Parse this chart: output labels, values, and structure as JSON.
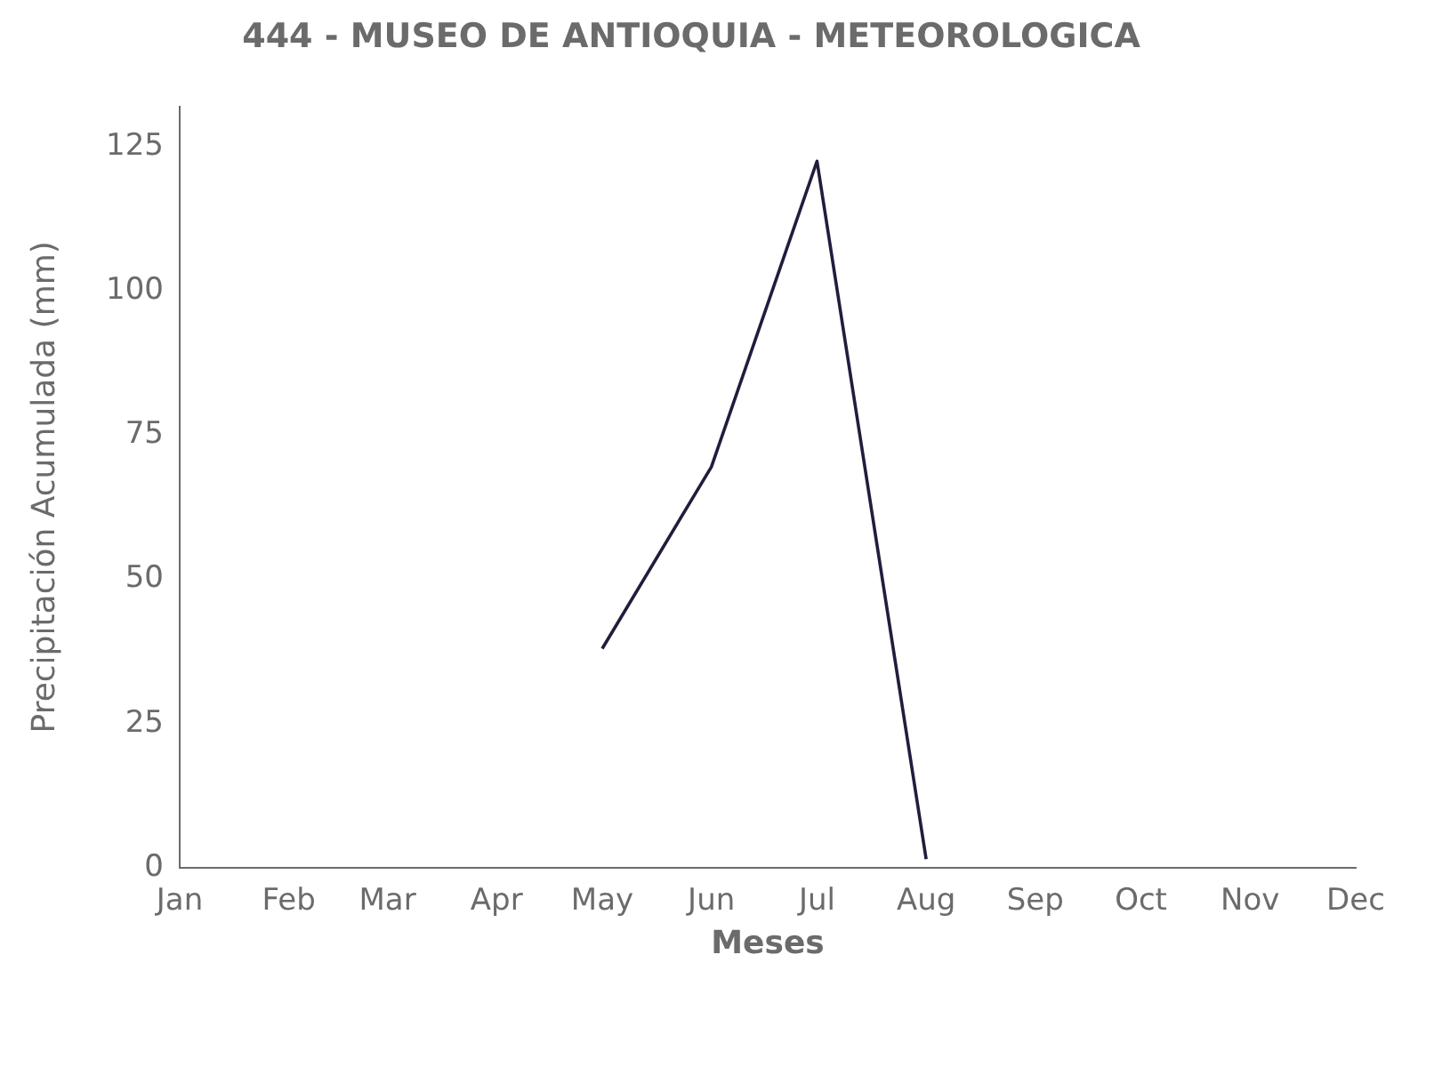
{
  "chart_data": {
    "type": "line",
    "title": "444 - MUSEO DE ANTIOQUIA - METEOROLOGICA",
    "xlabel": "Meses",
    "ylabel": "Precipitación Acumulada (mm)",
    "x": [
      "--05-01",
      "--06-01",
      "--07-01",
      "--08-01"
    ],
    "series": [
      {
        "color": "#211d3d",
        "values": [
          38,
          69.5,
          122.5,
          1.5
        ]
      }
    ],
    "xlim": [
      "--01-01",
      "--12-01"
    ],
    "xticks": [
      {
        "value": "--01-01",
        "label": "Jan"
      },
      {
        "value": "--02-01",
        "label": "Feb"
      },
      {
        "value": "--03-01",
        "label": "Mar"
      },
      {
        "value": "--04-01",
        "label": "Apr"
      },
      {
        "value": "--05-01",
        "label": "May"
      },
      {
        "value": "--06-01",
        "label": "Jun"
      },
      {
        "value": "--07-01",
        "label": "Jul"
      },
      {
        "value": "--08-01",
        "label": "Aug"
      },
      {
        "value": "--09-01",
        "label": "Sep"
      },
      {
        "value": "--10-01",
        "label": "Oct"
      },
      {
        "value": "--11-01",
        "label": "Nov"
      },
      {
        "value": "--12-01",
        "label": "Dec"
      }
    ],
    "ylim": [
      0,
      132
    ],
    "yticks": [
      0,
      25,
      50,
      75,
      100,
      125
    ],
    "grid": false,
    "legend": false,
    "marker": "none",
    "line_style": "solid"
  }
}
